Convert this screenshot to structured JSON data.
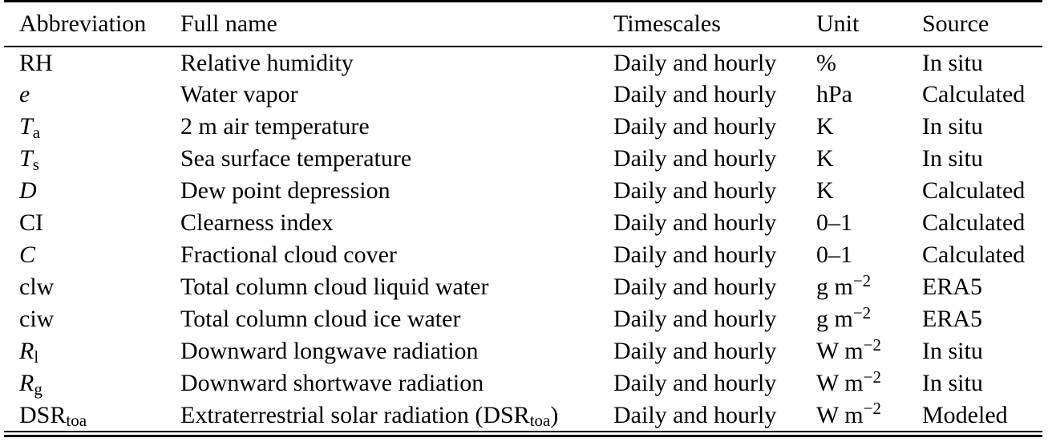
{
  "page": {
    "background": "#ffffff",
    "text_color": "#000000",
    "rule_color": "#000000"
  },
  "table": {
    "columns": [
      {
        "key": "abbreviation",
        "label": "Abbreviation"
      },
      {
        "key": "full_name",
        "label": "Full name"
      },
      {
        "key": "timescales",
        "label": "Timescales"
      },
      {
        "key": "unit",
        "label": "Unit"
      },
      {
        "key": "source",
        "label": "Source"
      }
    ],
    "rows": [
      {
        "abbreviation": [
          {
            "t": "RH"
          }
        ],
        "full_name": "Relative humidity",
        "timescales": "Daily and hourly",
        "unit": [
          {
            "t": "%"
          }
        ],
        "source": "In situ"
      },
      {
        "abbreviation": [
          {
            "t": "e",
            "i": true
          }
        ],
        "full_name": "Water vapor",
        "timescales": "Daily and hourly",
        "unit": [
          {
            "t": "hPa"
          }
        ],
        "source": "Calculated"
      },
      {
        "abbreviation": [
          {
            "t": "T",
            "i": true
          },
          {
            "t": "a",
            "sub": true
          }
        ],
        "full_name": "2 m air temperature",
        "timescales": "Daily and hourly",
        "unit": [
          {
            "t": "K"
          }
        ],
        "source": "In situ"
      },
      {
        "abbreviation": [
          {
            "t": "T",
            "i": true
          },
          {
            "t": "s",
            "sub": true
          }
        ],
        "full_name": "Sea surface temperature",
        "timescales": "Daily and hourly",
        "unit": [
          {
            "t": "K"
          }
        ],
        "source": "In situ"
      },
      {
        "abbreviation": [
          {
            "t": "D",
            "i": true
          }
        ],
        "full_name": "Dew point depression",
        "timescales": "Daily and hourly",
        "unit": [
          {
            "t": "K"
          }
        ],
        "source": "Calculated"
      },
      {
        "abbreviation": [
          {
            "t": "CI"
          }
        ],
        "full_name": "Clearness index",
        "timescales": "Daily and hourly",
        "unit": [
          {
            "t": "0–1"
          }
        ],
        "source": "Calculated"
      },
      {
        "abbreviation": [
          {
            "t": "C",
            "i": true
          }
        ],
        "full_name": "Fractional cloud cover",
        "timescales": "Daily and hourly",
        "unit": [
          {
            "t": "0–1"
          }
        ],
        "source": "Calculated"
      },
      {
        "abbreviation": [
          {
            "t": "clw"
          }
        ],
        "full_name": "Total column cloud liquid water",
        "timescales": "Daily and hourly",
        "unit": [
          {
            "t": "g m"
          },
          {
            "t": "−2",
            "sup": true
          }
        ],
        "source": "ERA5"
      },
      {
        "abbreviation": [
          {
            "t": "ciw"
          }
        ],
        "full_name": "Total column cloud ice water",
        "timescales": "Daily and hourly",
        "unit": [
          {
            "t": "g m"
          },
          {
            "t": "−2",
            "sup": true
          }
        ],
        "source": "ERA5"
      },
      {
        "abbreviation": [
          {
            "t": "R",
            "i": true
          },
          {
            "t": "l",
            "sub": true
          }
        ],
        "full_name": "Downward longwave radiation",
        "timescales": "Daily and hourly",
        "unit": [
          {
            "t": "W m"
          },
          {
            "t": "−2",
            "sup": true
          }
        ],
        "source": "In situ"
      },
      {
        "abbreviation": [
          {
            "t": "R",
            "i": true
          },
          {
            "t": "g",
            "sub": true
          }
        ],
        "full_name": "Downward shortwave radiation",
        "timescales": "Daily and hourly",
        "unit": [
          {
            "t": "W m"
          },
          {
            "t": "−2",
            "sup": true
          }
        ],
        "source": "In situ"
      },
      {
        "abbreviation": [
          {
            "t": "DSR"
          },
          {
            "t": "toa",
            "sub": true
          }
        ],
        "full_name": [
          {
            "t": "Extraterrestrial solar radiation (DSR"
          },
          {
            "t": "toa",
            "sub": true
          },
          {
            "t": ")"
          }
        ],
        "timescales": "Daily and hourly",
        "unit": [
          {
            "t": "W m"
          },
          {
            "t": "−2",
            "sup": true
          }
        ],
        "source": "Modeled"
      }
    ]
  }
}
